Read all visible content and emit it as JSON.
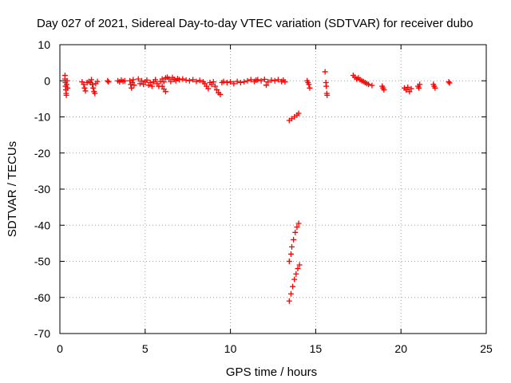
{
  "chart_data": {
    "type": "scatter",
    "title": "Day 027 of 2021, Sidereal Day-to-day VTEC variation (SDTVAR) for receiver dubo",
    "xlabel": "GPS time / hours",
    "ylabel": "SDTVAR / TECUs",
    "xlim": [
      0,
      25
    ],
    "ylim": [
      -70,
      10
    ],
    "xticks": [
      0,
      5,
      10,
      15,
      20,
      25
    ],
    "yticks": [
      10,
      0,
      -10,
      -20,
      -30,
      -40,
      -50,
      -60,
      -70
    ],
    "grid": true,
    "marker": "plus",
    "color": "#ff0000",
    "points": [
      [
        0.3,
        1.5
      ],
      [
        0.3,
        0.5
      ],
      [
        0.32,
        -0.5
      ],
      [
        0.33,
        -1.5
      ],
      [
        0.35,
        -2.5
      ],
      [
        0.37,
        -3.5
      ],
      [
        0.38,
        -4.0
      ],
      [
        0.4,
        -1.0
      ],
      [
        0.42,
        0.0
      ],
      [
        0.45,
        -2.0
      ],
      [
        1.3,
        -0.3
      ],
      [
        1.4,
        -1.0
      ],
      [
        1.45,
        -2.0
      ],
      [
        1.5,
        -2.8
      ],
      [
        1.6,
        -0.5
      ],
      [
        1.7,
        -0.2
      ],
      [
        1.8,
        -0.5
      ],
      [
        1.85,
        0.3
      ],
      [
        1.9,
        -1.0
      ],
      [
        1.95,
        -2.0
      ],
      [
        2.0,
        -3.0
      ],
      [
        2.05,
        -3.5
      ],
      [
        2.1,
        -0.8
      ],
      [
        2.2,
        -0.2
      ],
      [
        2.8,
        0.0
      ],
      [
        2.85,
        -0.3
      ],
      [
        3.4,
        0.0
      ],
      [
        3.5,
        -0.3
      ],
      [
        3.6,
        0.2
      ],
      [
        3.7,
        -0.2
      ],
      [
        3.8,
        0.0
      ],
      [
        4.1,
        0.0
      ],
      [
        4.15,
        -1.0
      ],
      [
        4.2,
        -2.0
      ],
      [
        4.25,
        -0.5
      ],
      [
        4.3,
        0.3
      ],
      [
        4.35,
        -1.2
      ],
      [
        4.6,
        0.5
      ],
      [
        4.7,
        -0.8
      ],
      [
        4.8,
        0.0
      ],
      [
        4.9,
        -1.0
      ],
      [
        5.0,
        -0.3
      ],
      [
        5.1,
        0.2
      ],
      [
        5.2,
        -1.2
      ],
      [
        5.3,
        -0.5
      ],
      [
        5.4,
        -1.5
      ],
      [
        5.5,
        -0.3
      ],
      [
        5.6,
        0.3
      ],
      [
        5.7,
        -0.8
      ],
      [
        5.8,
        -1.5
      ],
      [
        5.9,
        -0.2
      ],
      [
        6.0,
        0.5
      ],
      [
        6.1,
        -0.3
      ],
      [
        6.2,
        0.8
      ],
      [
        6.3,
        1.0
      ],
      [
        6.4,
        0.5
      ],
      [
        6.5,
        -0.2
      ],
      [
        6.6,
        0.9
      ],
      [
        6.7,
        0.4
      ],
      [
        6.8,
        0.0
      ],
      [
        6.9,
        0.6
      ],
      [
        6.0,
        -1.5
      ],
      [
        6.1,
        -2.3
      ],
      [
        6.2,
        -3.0
      ],
      [
        7.0,
        0.3
      ],
      [
        7.2,
        0.5
      ],
      [
        7.4,
        0.2
      ],
      [
        7.6,
        0.0
      ],
      [
        7.8,
        0.3
      ],
      [
        8.0,
        -0.2
      ],
      [
        8.2,
        0.1
      ],
      [
        8.4,
        -0.3
      ],
      [
        8.5,
        -0.8
      ],
      [
        8.6,
        -1.5
      ],
      [
        8.7,
        -2.2
      ],
      [
        8.8,
        -0.5
      ],
      [
        8.9,
        -1.0
      ],
      [
        9.0,
        -0.3
      ],
      [
        9.1,
        -1.5
      ],
      [
        9.2,
        -2.5
      ],
      [
        9.3,
        -3.3
      ],
      [
        9.4,
        -3.8
      ],
      [
        9.5,
        -0.5
      ],
      [
        9.6,
        -0.2
      ],
      [
        9.8,
        -0.5
      ],
      [
        10.0,
        -0.3
      ],
      [
        10.2,
        -0.8
      ],
      [
        10.4,
        -0.2
      ],
      [
        10.6,
        -0.5
      ],
      [
        10.8,
        -0.3
      ],
      [
        11.0,
        0.0
      ],
      [
        11.2,
        0.3
      ],
      [
        11.4,
        -0.2
      ],
      [
        11.5,
        0.2
      ],
      [
        11.6,
        0.3
      ],
      [
        11.8,
        0.0
      ],
      [
        12.0,
        0.4
      ],
      [
        12.1,
        -1.2
      ],
      [
        12.2,
        -0.3
      ],
      [
        12.4,
        0.2
      ],
      [
        12.6,
        0.0
      ],
      [
        12.8,
        0.3
      ],
      [
        13.0,
        -0.2
      ],
      [
        13.1,
        0.2
      ],
      [
        13.2,
        -0.3
      ],
      [
        13.45,
        -11.0
      ],
      [
        13.6,
        -10.5
      ],
      [
        13.75,
        -10.0
      ],
      [
        13.9,
        -9.5
      ],
      [
        14.0,
        -9.0
      ],
      [
        13.45,
        -50.0
      ],
      [
        13.55,
        -48.0
      ],
      [
        13.6,
        -46.0
      ],
      [
        13.7,
        -44.0
      ],
      [
        13.8,
        -42.0
      ],
      [
        13.9,
        -40.5
      ],
      [
        14.0,
        -39.5
      ],
      [
        13.45,
        -61.0
      ],
      [
        13.55,
        -59.0
      ],
      [
        13.65,
        -57.0
      ],
      [
        13.75,
        -55.0
      ],
      [
        13.85,
        -53.5
      ],
      [
        13.95,
        -52.0
      ],
      [
        14.05,
        -51.0
      ],
      [
        14.5,
        0.0
      ],
      [
        14.55,
        -0.5
      ],
      [
        14.6,
        -1.0
      ],
      [
        14.65,
        -2.0
      ],
      [
        15.55,
        2.5
      ],
      [
        15.6,
        -0.5
      ],
      [
        15.62,
        -1.5
      ],
      [
        15.65,
        -3.5
      ],
      [
        15.67,
        -4.0
      ],
      [
        17.2,
        1.5
      ],
      [
        17.3,
        1.0
      ],
      [
        17.4,
        0.5
      ],
      [
        17.5,
        0.8
      ],
      [
        17.6,
        0.3
      ],
      [
        17.7,
        0.0
      ],
      [
        17.8,
        -0.2
      ],
      [
        17.9,
        -0.5
      ],
      [
        18.0,
        -0.8
      ],
      [
        18.1,
        -1.0
      ],
      [
        18.3,
        -1.3
      ],
      [
        18.9,
        -1.5
      ],
      [
        18.95,
        -2.0
      ],
      [
        19.0,
        -2.5
      ],
      [
        20.2,
        -2.0
      ],
      [
        20.3,
        -2.5
      ],
      [
        20.4,
        -1.8
      ],
      [
        20.5,
        -3.0
      ],
      [
        20.6,
        -2.2
      ],
      [
        21.0,
        -1.5
      ],
      [
        21.05,
        -2.0
      ],
      [
        21.1,
        -1.0
      ],
      [
        21.9,
        -1.0
      ],
      [
        21.95,
        -1.5
      ],
      [
        22.0,
        -2.0
      ],
      [
        22.8,
        -0.3
      ],
      [
        22.85,
        -0.6
      ]
    ]
  }
}
